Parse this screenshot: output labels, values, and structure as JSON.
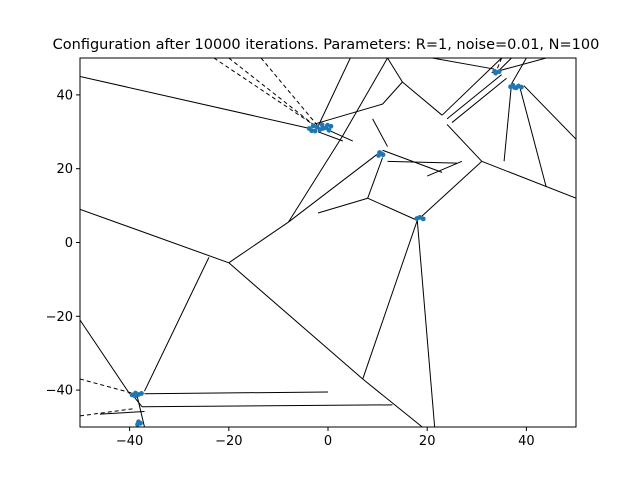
{
  "chart_data": {
    "type": "scatter",
    "title": "Configuration after 10000 iterations. Parameters: R=1, noise=0.01, N=100",
    "xlabel": "",
    "ylabel": "",
    "xlim": [
      -50,
      50
    ],
    "ylim": [
      -50,
      50
    ],
    "x_ticks": [
      -40,
      -20,
      0,
      20,
      40
    ],
    "y_ticks": [
      -40,
      -20,
      0,
      20,
      40
    ],
    "x_tick_labels": [
      "−40",
      "−20",
      "0",
      "20",
      "40"
    ],
    "y_tick_labels": [
      "−40",
      "−20",
      "0",
      "20",
      "40"
    ],
    "grid": false,
    "point_color": "#1f77b4",
    "edge_color": "#000000",
    "points": [
      {
        "x": -3.8,
        "y": 30.9
      },
      {
        "x": -3.0,
        "y": 31.6
      },
      {
        "x": -2.2,
        "y": 31.3
      },
      {
        "x": -1.6,
        "y": 30.6
      },
      {
        "x": -1.2,
        "y": 31.9
      },
      {
        "x": -0.4,
        "y": 31.1
      },
      {
        "x": 0.2,
        "y": 30.4
      },
      {
        "x": -2.6,
        "y": 30.2
      },
      {
        "x": -1.0,
        "y": 30.9
      },
      {
        "x": 0.6,
        "y": 31.5
      },
      {
        "x": -3.3,
        "y": 30.3
      },
      {
        "x": -0.1,
        "y": 31.8
      },
      {
        "x": 10.2,
        "y": 23.6
      },
      {
        "x": 10.7,
        "y": 24.1
      },
      {
        "x": 11.1,
        "y": 23.8
      },
      {
        "x": 10.4,
        "y": 24.4
      },
      {
        "x": 17.9,
        "y": 6.5
      },
      {
        "x": 18.5,
        "y": 6.8
      },
      {
        "x": 19.2,
        "y": 6.4
      },
      {
        "x": 33.8,
        "y": 45.9
      },
      {
        "x": 34.5,
        "y": 46.3
      },
      {
        "x": 33.6,
        "y": 46.4
      },
      {
        "x": 36.8,
        "y": 42.2
      },
      {
        "x": 37.3,
        "y": 42.6
      },
      {
        "x": 37.9,
        "y": 41.9
      },
      {
        "x": 38.4,
        "y": 42.4
      },
      {
        "x": 39.0,
        "y": 42.1
      },
      {
        "x": 37.6,
        "y": 42.0
      },
      {
        "x": -39.5,
        "y": -41.3
      },
      {
        "x": -38.8,
        "y": -40.8
      },
      {
        "x": -38.2,
        "y": -41.2
      },
      {
        "x": -37.6,
        "y": -40.9
      },
      {
        "x": -38.9,
        "y": -41.6
      },
      {
        "x": -38.2,
        "y": -48.6
      },
      {
        "x": -37.8,
        "y": -49.0
      },
      {
        "x": -38.4,
        "y": -49.3
      }
    ],
    "edges": [
      {
        "x": [
          -50.0,
          -4.0
        ],
        "y": [
          45.0,
          31.0
        ]
      },
      {
        "x": [
          -50.0,
          -20.0
        ],
        "y": [
          9.0,
          -5.5
        ]
      },
      {
        "x": [
          -20.0,
          -8.0
        ],
        "y": [
          -5.5,
          5.5
        ]
      },
      {
        "x": [
          -20.0,
          7.0
        ],
        "y": [
          -5.5,
          -37.0
        ]
      },
      {
        "x": [
          -24.0,
          -37.0
        ],
        "y": [
          -4.0,
          -40.3
        ]
      },
      {
        "x": [
          -50.0,
          -40.0
        ],
        "y": [
          -21.0,
          -41.0
        ]
      },
      {
        "x": [
          -38.5,
          -37.0
        ],
        "y": [
          -41.5,
          -50.0
        ]
      },
      {
        "x": [
          -39.0,
          -37.5
        ],
        "y": [
          -42.0,
          -44.5
        ]
      },
      {
        "x": [
          -37.5,
          13.0
        ],
        "y": [
          -44.5,
          -44.0
        ]
      },
      {
        "x": [
          -46.0,
          -37.0
        ],
        "y": [
          -46.5,
          -45.8
        ]
      },
      {
        "x": [
          -37.0,
          0.0
        ],
        "y": [
          -41.0,
          -40.5
        ]
      },
      {
        "x": [
          7.0,
          18.0
        ],
        "y": [
          -37.0,
          6.0
        ]
      },
      {
        "x": [
          7.0,
          19.0
        ],
        "y": [
          -37.0,
          -50.0
        ]
      },
      {
        "x": [
          18.0,
          21.5
        ],
        "y": [
          6.0,
          -50.0
        ]
      },
      {
        "x": [
          -8.0,
          3.0
        ],
        "y": [
          5.5,
          29.0
        ]
      },
      {
        "x": [
          -8.0,
          10.0
        ],
        "y": [
          5.5,
          24.0
        ]
      },
      {
        "x": [
          -2.0,
          8.0
        ],
        "y": [
          8.0,
          12.0
        ]
      },
      {
        "x": [
          8.0,
          18.0
        ],
        "y": [
          12.0,
          6.0
        ]
      },
      {
        "x": [
          8.0,
          11.0
        ],
        "y": [
          12.0,
          23.0
        ]
      },
      {
        "x": [
          18.0,
          31.0
        ],
        "y": [
          6.0,
          22.0
        ]
      },
      {
        "x": [
          11.0,
          23.0
        ],
        "y": [
          25.0,
          19.0
        ]
      },
      {
        "x": [
          12.0,
          26.0
        ],
        "y": [
          22.0,
          21.5
        ]
      },
      {
        "x": [
          20.0,
          27.0
        ],
        "y": [
          18.0,
          22.0
        ]
      },
      {
        "x": [
          31.0,
          50.0
        ],
        "y": [
          22.0,
          12.0
        ]
      },
      {
        "x": [
          31.0,
          24.0
        ],
        "y": [
          22.0,
          32.0
        ]
      },
      {
        "x": [
          9.0,
          12.0
        ],
        "y": [
          33.5,
          26.0
        ]
      },
      {
        "x": [
          -3.0,
          11.0
        ],
        "y": [
          32.0,
          37.5
        ]
      },
      {
        "x": [
          11.0,
          15.0
        ],
        "y": [
          37.5,
          43.5
        ]
      },
      {
        "x": [
          15.0,
          23.0
        ],
        "y": [
          43.5,
          34.5
        ]
      },
      {
        "x": [
          23.0,
          35.0
        ],
        "y": [
          34.5,
          50.0
        ]
      },
      {
        "x": [
          3.0,
          12.0
        ],
        "y": [
          29.0,
          50.0
        ]
      },
      {
        "x": [
          -2.0,
          4.5
        ],
        "y": [
          31.5,
          50.0
        ]
      },
      {
        "x": [
          12.0,
          15.0
        ],
        "y": [
          50.0,
          43.5
        ]
      },
      {
        "x": [
          37.0,
          35.5
        ],
        "y": [
          43.0,
          22.0
        ]
      },
      {
        "x": [
          37.0,
          40.0
        ],
        "y": [
          43.0,
          50.0
        ]
      },
      {
        "x": [
          38.5,
          44.0
        ],
        "y": [
          43.0,
          15.0
        ]
      },
      {
        "x": [
          39.5,
          50.0
        ],
        "y": [
          42.5,
          28.0
        ]
      },
      {
        "x": [
          35.0,
          24.0
        ],
        "y": [
          45.5,
          33.5
        ]
      },
      {
        "x": [
          36.0,
          25.0
        ],
        "y": [
          44.5,
          32.5
        ]
      },
      {
        "x": [
          33.5,
          21.0
        ],
        "y": [
          47.0,
          50.0
        ]
      },
      {
        "x": [
          34.0,
          37.0
        ],
        "y": [
          46.0,
          50.0
        ]
      },
      {
        "x": [
          33.0,
          44.0
        ],
        "y": [
          46.0,
          50.0
        ]
      },
      {
        "x": [
          -2.0,
          3.0
        ],
        "y": [
          30.0,
          27.5
        ]
      },
      {
        "x": [
          0.0,
          5.0
        ],
        "y": [
          30.5,
          27.5
        ]
      }
    ],
    "dashed_edges": [
      {
        "x": [
          -20.0,
          -2.5
        ],
        "y": [
          50.0,
          31.5
        ]
      },
      {
        "x": [
          -13.5,
          -1.8
        ],
        "y": [
          50.0,
          31.2
        ]
      },
      {
        "x": [
          -23.0,
          -3.0
        ],
        "y": [
          50.0,
          32.0
        ]
      },
      {
        "x": [
          -50.0,
          -39.0
        ],
        "y": [
          -37.0,
          -41.0
        ]
      },
      {
        "x": [
          -50.0,
          -39.0
        ],
        "y": [
          -47.0,
          -45.0
        ]
      },
      {
        "x": [
          35.0,
          33.8
        ],
        "y": [
          50.0,
          46.0
        ]
      }
    ]
  }
}
